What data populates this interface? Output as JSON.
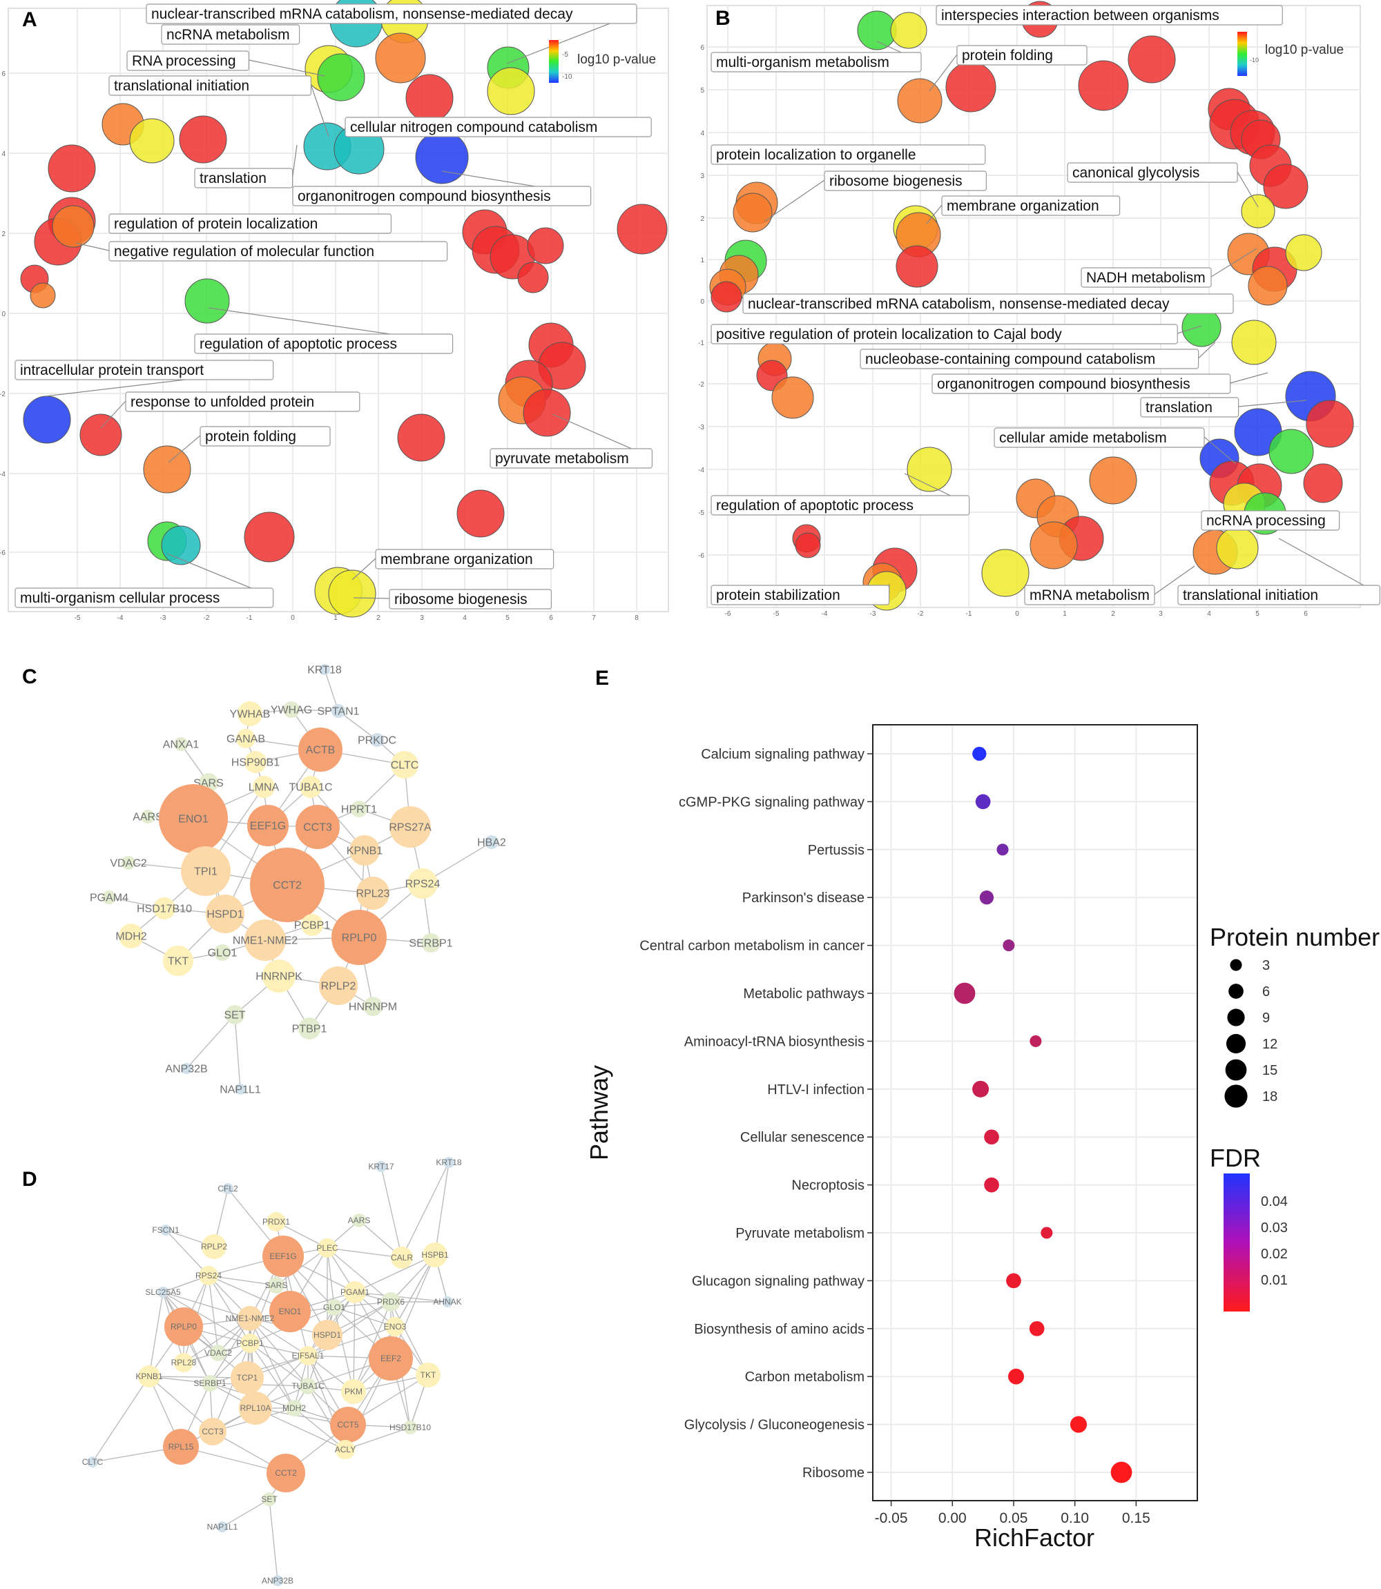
{
  "colors": {
    "red": "#ee2f2f",
    "orange": "#f47c2a",
    "yellow": "#eeea2a",
    "green": "#3ddc3d",
    "cyan": "#1dbdbd",
    "blue": "#1e3cf0",
    "purple": "#9b1fd0",
    "grid": "#ebebeb"
  },
  "panel_a": {
    "letter": "A",
    "legend_title": "log10 p-value",
    "legend_ticks": [
      "-5",
      "-10"
    ],
    "x_ticks": [
      "-5",
      "-4",
      "-3",
      "-2",
      "-1",
      "0",
      "1",
      "2",
      "3",
      "4",
      "5",
      "6",
      "7",
      "8"
    ],
    "y_ticks": [
      "6",
      "4",
      "2",
      "0",
      "-2",
      "-4",
      "-6"
    ],
    "labels": [
      "nuclear-transcribed mRNA catabolism, nonsense-mediated decay",
      "ncRNA metabolism",
      "RNA processing",
      "translational initiation",
      "cellular nitrogen compound catabolism",
      "translation",
      "organonitrogen compound biosynthesis",
      "regulation of protein localization",
      "negative regulation of molecular function",
      "regulation of apoptotic process",
      "intracellular protein transport",
      "response to unfolded protein",
      "protein folding",
      "pyruvate metabolism",
      "membrane organization",
      "multi-organism cellular process",
      "ribosome biogenesis"
    ]
  },
  "panel_b": {
    "letter": "B",
    "legend_title": "log10 p-value",
    "legend_ticks": [
      "-10"
    ],
    "x_ticks": [
      "-6",
      "-5",
      "-4",
      "-3",
      "-2",
      "-1",
      "0",
      "1",
      "2",
      "3",
      "4",
      "5",
      "6"
    ],
    "y_ticks": [
      "6",
      "5",
      "4",
      "3",
      "2",
      "1",
      "0",
      "-1",
      "-2",
      "-3",
      "-4",
      "-5",
      "-6"
    ],
    "labels": [
      "interspecies interaction between organisms",
      "multi-organism metabolism",
      "protein folding",
      "protein localization to organelle",
      "ribosome biogenesis",
      "canonical glycolysis",
      "membrane organization",
      "NADH metabolism",
      "nuclear-transcribed mRNA catabolism, nonsense-mediated decay",
      "positive regulation of protein localization to Cajal body",
      "nucleobase-containing compound catabolism",
      "organonitrogen compound biosynthesis",
      "translation",
      "cellular amide metabolism",
      "regulation of apoptotic process",
      "ncRNA processing",
      "protein stabilization",
      "mRNA metabolism",
      "translational initiation"
    ]
  },
  "panel_c": {
    "letter": "C",
    "nodes": [
      "KRT18",
      "YWHAB",
      "YWHAG",
      "SPTAN1",
      "ANXA1",
      "GANAB",
      "PRKDC",
      "HSP90B1",
      "ACTB",
      "CLTC",
      "SARS",
      "LMNA",
      "TUBA1C",
      "HPRT1",
      "AARS",
      "ENO1",
      "EEF1G",
      "CCT3",
      "RPS27A",
      "HBA2",
      "VDAC2",
      "TPI1",
      "KPNB1",
      "CCT2",
      "RPS24",
      "PGAM4",
      "HSD17B10",
      "RPL23",
      "HSPD1",
      "PCBP1",
      "MDH2",
      "NME1-NME2",
      "RPLP0",
      "SERBP1",
      "TKT",
      "GLO1",
      "HNRNPK",
      "RPLP2",
      "HNRNPM",
      "SET",
      "PTBP1",
      "ANP32B",
      "NAP1L1"
    ]
  },
  "panel_d": {
    "letter": "D",
    "nodes": [
      "KRT17",
      "KRT18",
      "CFL2",
      "PRDX1",
      "AARS",
      "FSCN1",
      "RPLP2",
      "EEF1G",
      "PLEC",
      "CALR",
      "HSPB1",
      "RPS24",
      "SARS",
      "PGAM1",
      "SLC25A5",
      "ENO1",
      "GLO1",
      "PRDX6",
      "AHNAK",
      "RPLP0",
      "NME1-NME2",
      "HSPD1",
      "ENO3",
      "PCBP1",
      "VDAC2",
      "EIF5AL1",
      "EEF2",
      "RPL28",
      "TKT",
      "KPNB1",
      "TCP1",
      "SERBP1",
      "TUBA1C",
      "PKM",
      "RPL10A",
      "MDH2",
      "CCT3",
      "CCT5",
      "HSD17B10",
      "RPL15",
      "ACLY",
      "CLTC",
      "CCT2",
      "SET",
      "NAP1L1",
      "ANP32B"
    ]
  },
  "chart_data": {
    "type": "scatter",
    "panel_letter": "E",
    "title": "",
    "xlabel": "RichFactor",
    "ylabel": "Pathway",
    "xlim": [
      -0.065,
      0.2
    ],
    "x_ticks": [
      "-0.05",
      "0.00",
      "0.05",
      "0.10",
      "0.15"
    ],
    "x_tick_values": [
      -0.05,
      0,
      0.05,
      0.1,
      0.15
    ],
    "categories": [
      "Calcium signaling pathway",
      "cGMP-PKG signaling pathway",
      "Pertussis",
      "Parkinson's disease",
      "Central carbon metabolism in cancer",
      "Metabolic pathways",
      "Aminoacyl-tRNA biosynthesis",
      "HTLV-I infection",
      "Cellular senescence",
      "Necroptosis",
      "Pyruvate metabolism",
      "Glucagon signaling pathway",
      "Biosynthesis of amino acids",
      "Carbon metabolism",
      "Glycolysis / Gluconeogenesis",
      "Ribosome"
    ],
    "richfactor": [
      0.022,
      0.025,
      0.041,
      0.028,
      0.046,
      0.01,
      0.068,
      0.023,
      0.032,
      0.032,
      0.077,
      0.05,
      0.069,
      0.052,
      0.103,
      0.138
    ],
    "protein_number": [
      5,
      6,
      3,
      5,
      3,
      15,
      3,
      8,
      6,
      6,
      3,
      6,
      6,
      7,
      8,
      15
    ],
    "fdr": [
      0.045,
      0.033,
      0.028,
      0.025,
      0.021,
      0.015,
      0.013,
      0.011,
      0.008,
      0.007,
      0.006,
      0.004,
      0.003,
      0.002,
      0.001,
      0.0005
    ],
    "size_legend_title": "Protein number",
    "size_legend_values": [
      "3",
      "6",
      "9",
      "12",
      "15",
      "18"
    ],
    "color_legend_title": "FDR",
    "color_legend_ticks": [
      "0.04",
      "0.03",
      "0.02",
      "0.01"
    ]
  }
}
